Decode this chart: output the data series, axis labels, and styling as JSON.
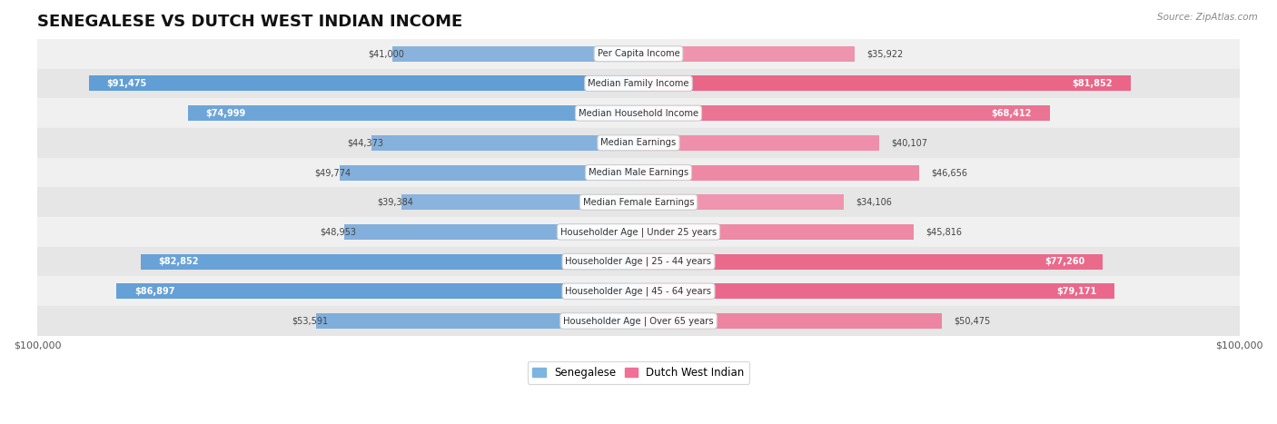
{
  "title": "SENEGALESE VS DUTCH WEST INDIAN INCOME",
  "source": "Source: ZipAtlas.com",
  "categories": [
    "Per Capita Income",
    "Median Family Income",
    "Median Household Income",
    "Median Earnings",
    "Median Male Earnings",
    "Median Female Earnings",
    "Householder Age | Under 25 years",
    "Householder Age | 25 - 44 years",
    "Householder Age | 45 - 64 years",
    "Householder Age | Over 65 years"
  ],
  "senegalese": [
    41000,
    91475,
    74999,
    44373,
    49774,
    39384,
    48953,
    82852,
    86897,
    53591
  ],
  "dutch_west_indian": [
    35922,
    81852,
    68412,
    40107,
    46656,
    34106,
    45816,
    77260,
    79171,
    50475
  ],
  "senegalese_labels": [
    "$41,000",
    "$91,475",
    "$74,999",
    "$44,373",
    "$49,774",
    "$39,384",
    "$48,953",
    "$82,852",
    "$86,897",
    "$53,591"
  ],
  "dutch_labels": [
    "$35,922",
    "$81,852",
    "$68,412",
    "$40,107",
    "$46,656",
    "$34,106",
    "$45,816",
    "$77,260",
    "$79,171",
    "$50,475"
  ],
  "max_val": 100000,
  "blue_light": "#aac4e4",
  "blue_dark": "#5b9bd5",
  "pink_light": "#f4b8cc",
  "pink_dark": "#e8547a",
  "blue_legend": "#7eb5e0",
  "pink_legend": "#f07098",
  "row_bg_odd": "#f0f0f0",
  "row_bg_even": "#e6e6e6",
  "inside_label_threshold": 55000,
  "title_fontsize": 13,
  "bar_height": 0.52,
  "source_fontsize": 7.5,
  "tick_fontsize": 8,
  "cat_fontsize": 7.2,
  "val_fontsize": 7.0
}
